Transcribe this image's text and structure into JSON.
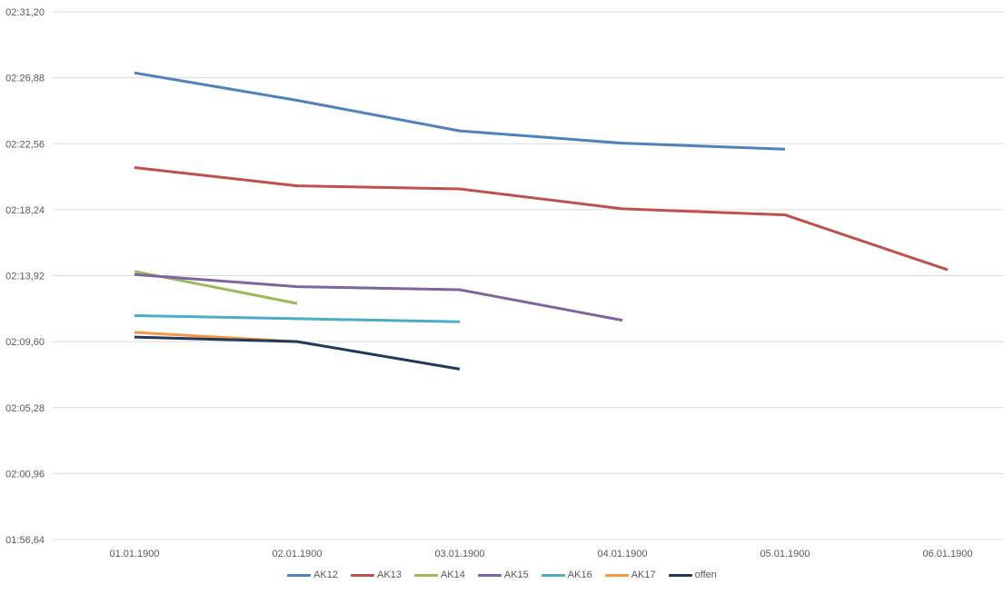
{
  "chart_data": {
    "type": "line",
    "title": "",
    "xlabel": "",
    "ylabel": "",
    "categories": [
      "01.01.1900",
      "02.01.1900",
      "03.01.1900",
      "04.01.1900",
      "05.01.1900",
      "06.01.1900"
    ],
    "y_ticks": [
      "01:56,64",
      "02:00,96",
      "02:05,28",
      "02:09,60",
      "02:13,92",
      "02:18,24",
      "02:22,56",
      "02:26,88",
      "02:31,20"
    ],
    "ylim_seconds": [
      116.64,
      151.2
    ],
    "grid": true,
    "legend_position": "bottom",
    "series": [
      {
        "name": "AK12",
        "color": "#4F81BD",
        "values": [
          147.2,
          145.4,
          143.4,
          142.6,
          142.2,
          null
        ]
      },
      {
        "name": "AK13",
        "color": "#C0504D",
        "values": [
          141.0,
          139.8,
          139.6,
          138.3,
          137.9,
          134.3
        ]
      },
      {
        "name": "AK14",
        "color": "#9BBB59",
        "values": [
          134.2,
          132.1,
          null,
          null,
          null,
          null
        ]
      },
      {
        "name": "AK15",
        "color": "#8064A2",
        "values": [
          134.0,
          133.2,
          133.0,
          131.0,
          null,
          null
        ]
      },
      {
        "name": "AK16",
        "color": "#4BACC6",
        "values": [
          131.3,
          131.1,
          130.9,
          null,
          null,
          null
        ]
      },
      {
        "name": "AK17",
        "color": "#F79646",
        "values": [
          130.2,
          129.6,
          null,
          null,
          null,
          null
        ]
      },
      {
        "name": "offen",
        "color": "#1F3A5A",
        "values": [
          129.9,
          129.6,
          127.8,
          null,
          null,
          null
        ]
      }
    ]
  }
}
